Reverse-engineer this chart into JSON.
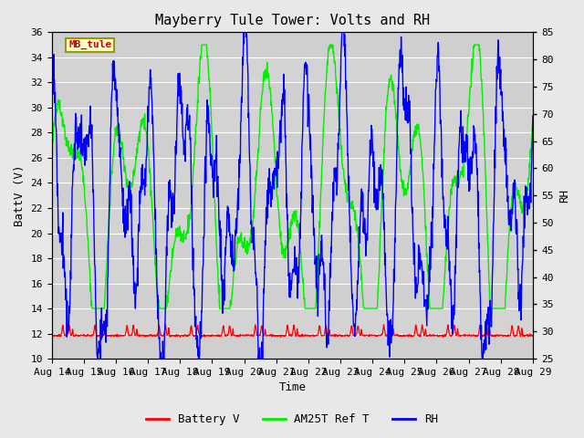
{
  "title": "Mayberry Tule Tower: Volts and RH",
  "xlabel": "Time",
  "ylabel_left": "BattV (V)",
  "ylabel_right": "RH",
  "ylim_left": [
    10,
    36
  ],
  "ylim_right": [
    25,
    85
  ],
  "yticks_left": [
    10,
    12,
    14,
    16,
    18,
    20,
    22,
    24,
    26,
    28,
    30,
    32,
    34,
    36
  ],
  "yticks_right": [
    25,
    30,
    35,
    40,
    45,
    50,
    55,
    60,
    65,
    70,
    75,
    80,
    85
  ],
  "x_labels": [
    "Aug 14",
    "Aug 15",
    "Aug 16",
    "Aug 17",
    "Aug 18",
    "Aug 19",
    "Aug 20",
    "Aug 21",
    "Aug 22",
    "Aug 23",
    "Aug 24",
    "Aug 25",
    "Aug 26",
    "Aug 27",
    "Aug 28",
    "Aug 29"
  ],
  "legend_label": "MB_tule",
  "line_colors": {
    "battery": "#ff0000",
    "am25t": "#00ee00",
    "rh": "#0000ff"
  },
  "fig_facecolor": "#e8e8e8",
  "plot_facecolor": "#d3d3d3",
  "grid_color": "#ffffff",
  "title_fontsize": 11,
  "axis_fontsize": 9,
  "tick_fontsize": 8,
  "legend_fontsize": 9
}
